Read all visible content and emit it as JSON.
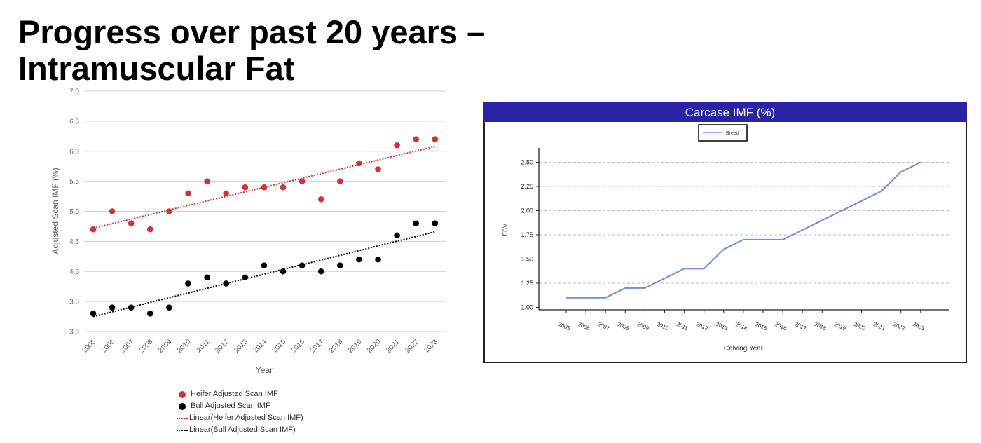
{
  "slide": {
    "title_line1": "Progress over past 20 years –",
    "title_line2": "Intramuscular Fat"
  },
  "chart_data": [
    {
      "type": "scatter",
      "title": "",
      "xlabel": "Year",
      "ylabel": "Adjusted Scan IMF (%)",
      "ylim": [
        3.0,
        7.0
      ],
      "yticks": [
        "3.0",
        "3.5",
        "4.0",
        "4.5",
        "5.0",
        "5.5",
        "6.0",
        "6.5",
        "7.0"
      ],
      "grid": "horizontal",
      "legend_position": "bottom",
      "x": [
        2005,
        2006,
        2007,
        2008,
        2009,
        2010,
        2011,
        2012,
        2013,
        2014,
        2015,
        2016,
        2017,
        2018,
        2019,
        2020,
        2021,
        2022,
        2023
      ],
      "series": [
        {
          "name": "Heifer Adjusted Scan IMF",
          "color": "#d13438",
          "values": [
            4.7,
            5.0,
            4.8,
            4.7,
            5.0,
            5.3,
            5.5,
            5.3,
            5.4,
            5.4,
            5.4,
            5.5,
            5.2,
            5.5,
            5.8,
            5.7,
            6.1,
            6.2,
            6.2
          ]
        },
        {
          "name": "Bull Adjusted Scan IMF",
          "color": "#000000",
          "values": [
            3.3,
            3.4,
            3.4,
            3.3,
            3.4,
            3.8,
            3.9,
            3.8,
            3.9,
            4.1,
            4.0,
            4.1,
            4.0,
            4.1,
            4.2,
            4.2,
            4.6,
            4.8,
            4.8
          ]
        }
      ],
      "trendlines": [
        {
          "name": "Linear(Heifer Adjusted Scan IMF)",
          "color": "#d13438",
          "start": 4.72,
          "end": 6.08
        },
        {
          "name": "Linear(Bull Adjusted Scan IMF)",
          "color": "#000000",
          "start": 3.25,
          "end": 4.66
        }
      ]
    },
    {
      "type": "line",
      "title": "Carcase IMF (%)",
      "xlabel": "Calving Year",
      "ylabel": "EBV",
      "ylim": [
        0.97,
        2.65
      ],
      "yticks": [
        "1.00",
        "1.25",
        "1.50",
        "1.75",
        "2.00",
        "2.25",
        "2.50"
      ],
      "grid": "horizontal-dashed",
      "legend_position": "top-center",
      "title_bar_color": "#2a23a6",
      "x": [
        2005,
        2006,
        2007,
        2008,
        2009,
        2010,
        2011,
        2012,
        2013,
        2014,
        2015,
        2016,
        2017,
        2018,
        2019,
        2020,
        2021,
        2022,
        2023
      ],
      "series": [
        {
          "name": "Breed",
          "color": "#6f8fd4",
          "values": [
            1.1,
            1.1,
            1.1,
            1.2,
            1.2,
            1.3,
            1.4,
            1.4,
            1.6,
            1.7,
            1.7,
            1.7,
            1.8,
            1.9,
            2.0,
            2.1,
            2.2,
            2.4,
            2.5
          ]
        }
      ]
    }
  ]
}
